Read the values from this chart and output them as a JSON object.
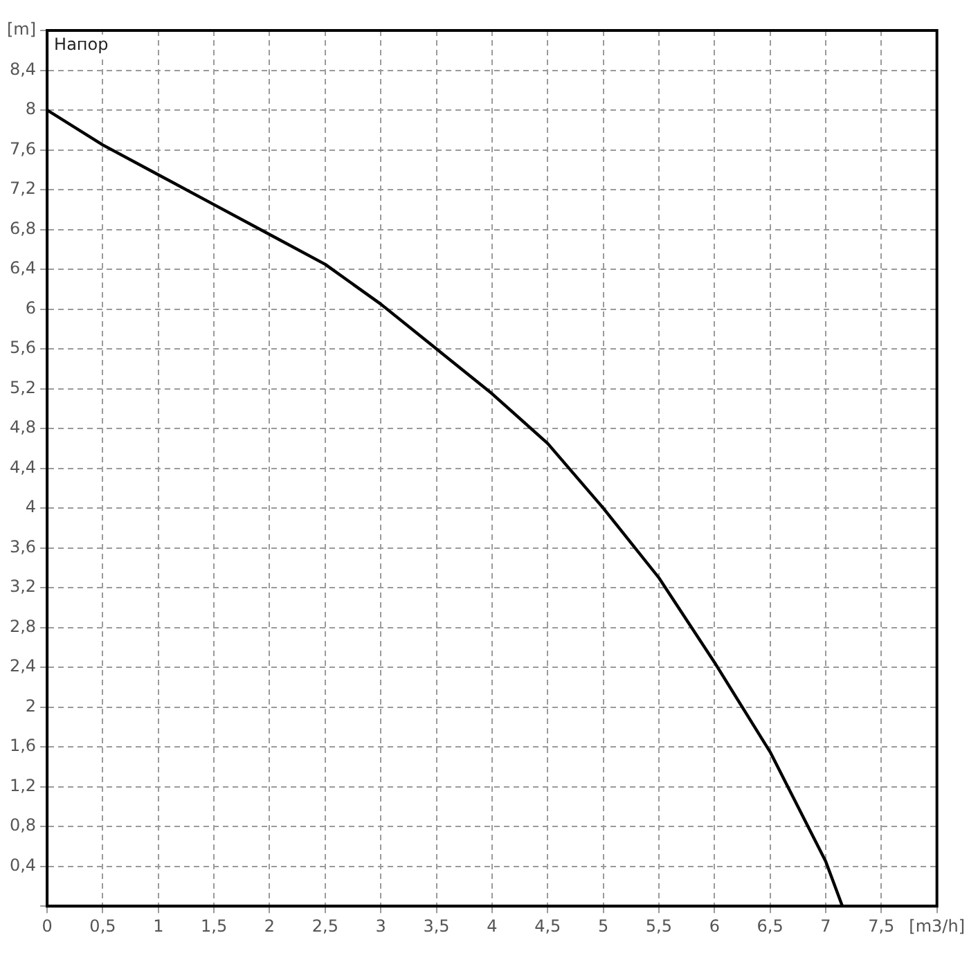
{
  "chart_data": {
    "type": "line",
    "ylabel": "Напор",
    "series": [
      {
        "color": "#000000",
        "x": [
          0,
          0.5,
          1,
          1.5,
          2,
          2.5,
          3,
          3.5,
          4,
          4.5,
          5,
          5.5,
          6,
          6.5,
          7,
          7.15
        ],
        "values": [
          8,
          7.65,
          7.35,
          7.05,
          6.75,
          6.45,
          6.05,
          5.6,
          5.15,
          4.65,
          4.0,
          3.3,
          2.45,
          1.55,
          0.45,
          0
        ]
      }
    ],
    "xlim": [
      0,
      8
    ],
    "ylim": [
      0,
      8.8
    ],
    "xticks": [
      0,
      {
        "value": 0.5,
        "label": "0,5"
      },
      1,
      {
        "value": 1.5,
        "label": "1,5"
      },
      2,
      {
        "value": 2.5,
        "label": "2,5"
      },
      3,
      {
        "value": 3.5,
        "label": "3,5"
      },
      4,
      {
        "value": 4.5,
        "label": "4,5"
      },
      5,
      {
        "value": 5.5,
        "label": "5,5"
      },
      6,
      {
        "value": 6.5,
        "label": "6,5"
      },
      7,
      {
        "value": 7.5,
        "label": "7,5"
      },
      {
        "value": 8,
        "label": "[m3/h]"
      }
    ],
    "yticks": [
      {
        "value": 0,
        "label": null
      },
      {
        "value": 0.4,
        "label": "0,4"
      },
      {
        "value": 0.8,
        "label": "0,8"
      },
      {
        "value": 1.2,
        "label": "1,2"
      },
      {
        "value": 1.6,
        "label": "1,6"
      },
      2,
      {
        "value": 2.4,
        "label": "2,4"
      },
      {
        "value": 2.8,
        "label": "2,8"
      },
      {
        "value": 3.2,
        "label": "3,2"
      },
      {
        "value": 3.6,
        "label": "3,6"
      },
      4,
      {
        "value": 4.4,
        "label": "4,4"
      },
      {
        "value": 4.8,
        "label": "4,8"
      },
      {
        "value": 5.2,
        "label": "5,2"
      },
      {
        "value": 5.6,
        "label": "5,6"
      },
      6,
      {
        "value": 6.4,
        "label": "6,4"
      },
      {
        "value": 6.8,
        "label": "6,8"
      },
      {
        "value": 7.2,
        "label": "7,2"
      },
      {
        "value": 7.6,
        "label": "7,6"
      },
      8,
      {
        "value": 8.4,
        "label": "8,4"
      },
      {
        "value": 8.8,
        "label": "[m]"
      }
    ],
    "grid": true,
    "marker": "none",
    "line_style": "solid",
    "legend": false
  }
}
